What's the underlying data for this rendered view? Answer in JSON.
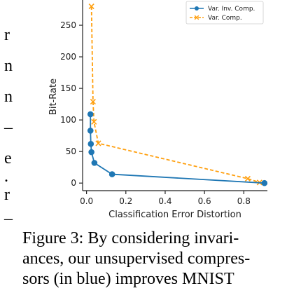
{
  "left_margin_fragments": [
    "r",
    "n",
    "n",
    "–",
    "e",
    ".",
    "r",
    "–"
  ],
  "caption": {
    "lines": [
      "Figure 3: By considering invari-",
      "ances, our unsupervised compres-",
      "sors (in blue) improves MNIST"
    ]
  },
  "chart_data": {
    "type": "line",
    "xlabel": "Classification Error Distortion",
    "ylabel": "Bit-Rate",
    "xlim": [
      -0.02,
      0.92
    ],
    "ylim": [
      -12,
      290
    ],
    "xticks": [
      "0.0",
      "0.2",
      "0.4",
      "0.6",
      "0.8"
    ],
    "xtick_values": [
      0.0,
      0.2,
      0.4,
      0.6,
      0.8
    ],
    "yticks": [
      "0",
      "50",
      "100",
      "150",
      "200",
      "250"
    ],
    "ytick_values": [
      0,
      50,
      100,
      150,
      200,
      250
    ],
    "grid": false,
    "legend_position": "top-right",
    "series": [
      {
        "name": "Var. Inv. Comp.",
        "color": "#1f77b4",
        "marker": "circle",
        "style": "solid",
        "points": [
          [
            0.02,
            109
          ],
          [
            0.02,
            83
          ],
          [
            0.022,
            62
          ],
          [
            0.025,
            49
          ],
          [
            0.04,
            32
          ],
          [
            0.13,
            14
          ],
          [
            0.905,
            0
          ]
        ]
      },
      {
        "name": "Var. Comp.",
        "color": "#ff9f0e",
        "marker": "x",
        "style": "dashed",
        "points": [
          [
            0.025,
            280
          ],
          [
            0.033,
            129
          ],
          [
            0.038,
            97
          ],
          [
            0.06,
            63
          ],
          [
            0.82,
            7
          ],
          [
            0.88,
            1
          ]
        ]
      }
    ]
  }
}
